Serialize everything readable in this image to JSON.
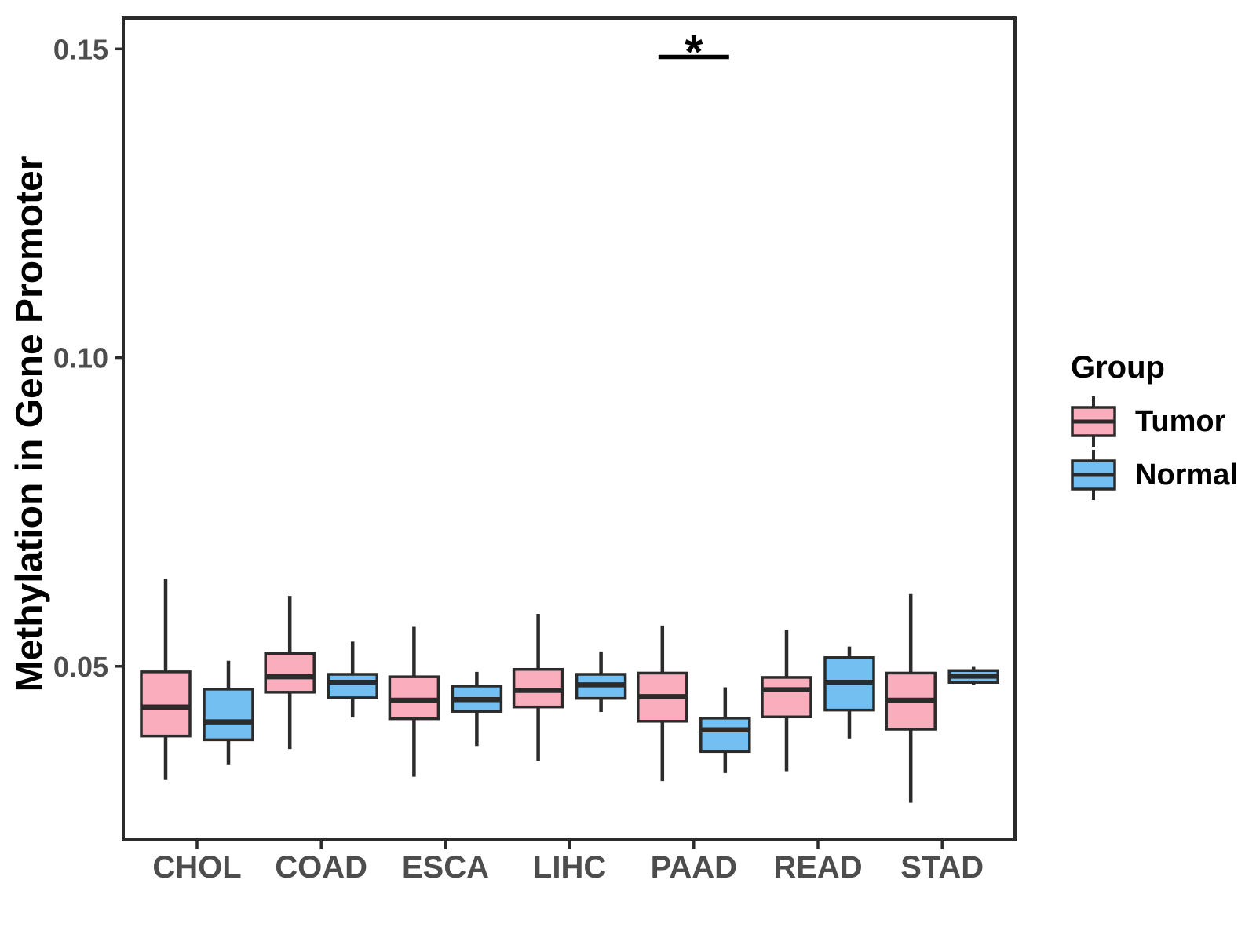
{
  "y_axis": {
    "title": "Methylation in Gene Promoter",
    "tick_labels": [
      "0.05",
      "0.10",
      "0.15"
    ]
  },
  "legend": {
    "title": "Group",
    "entries": [
      {
        "label": "Tumor",
        "color": "#FAAEBD"
      },
      {
        "label": "Normal",
        "color": "#74BFF2"
      }
    ]
  },
  "colors": {
    "box_stroke": "#2B2B2B",
    "axis_frame": "#2B2B2B",
    "tick_text": "#4D4D4D",
    "annotation": "#000000"
  },
  "chart_data": {
    "type": "boxplot",
    "title": "",
    "xlabel": "",
    "ylabel": "Methylation in Gene Promoter",
    "categories": [
      "CHOL",
      "COAD",
      "ESCA",
      "LIHC",
      "PAAD",
      "READ",
      "STAD"
    ],
    "ylim": [
      0.022,
      0.155
    ],
    "yticks": [
      0.05,
      0.1,
      0.15
    ],
    "ytick_labels": [
      "0.05",
      "0.10",
      "0.15"
    ],
    "grid": false,
    "legend_position": "right",
    "series": [
      {
        "name": "Tumor",
        "color": "#FAAEBD",
        "boxes": [
          {
            "category": "CHOL",
            "low": 0.0317,
            "q1": 0.0387,
            "median": 0.0434,
            "q3": 0.0491,
            "high": 0.0642
          },
          {
            "category": "COAD",
            "low": 0.0366,
            "q1": 0.0458,
            "median": 0.0483,
            "q3": 0.0521,
            "high": 0.0614
          },
          {
            "category": "ESCA",
            "low": 0.0321,
            "q1": 0.0415,
            "median": 0.0445,
            "q3": 0.0483,
            "high": 0.0564
          },
          {
            "category": "LIHC",
            "low": 0.0347,
            "q1": 0.0434,
            "median": 0.0461,
            "q3": 0.0495,
            "high": 0.0585
          },
          {
            "category": "PAAD",
            "low": 0.0314,
            "q1": 0.0411,
            "median": 0.0451,
            "q3": 0.0489,
            "high": 0.0566
          },
          {
            "category": "READ",
            "low": 0.033,
            "q1": 0.0418,
            "median": 0.0462,
            "q3": 0.0482,
            "high": 0.0559
          },
          {
            "category": "STAD",
            "low": 0.0279,
            "q1": 0.0398,
            "median": 0.0445,
            "q3": 0.0489,
            "high": 0.0617
          }
        ]
      },
      {
        "name": "Normal",
        "color": "#74BFF2",
        "boxes": [
          {
            "category": "CHOL",
            "low": 0.0341,
            "q1": 0.0381,
            "median": 0.041,
            "q3": 0.0463,
            "high": 0.0509
          },
          {
            "category": "COAD",
            "low": 0.0417,
            "q1": 0.0449,
            "median": 0.0474,
            "q3": 0.0487,
            "high": 0.054
          },
          {
            "category": "ESCA",
            "low": 0.0371,
            "q1": 0.0427,
            "median": 0.0446,
            "q3": 0.0468,
            "high": 0.0491
          },
          {
            "category": "LIHC",
            "low": 0.0426,
            "q1": 0.0448,
            "median": 0.047,
            "q3": 0.0487,
            "high": 0.0524
          },
          {
            "category": "PAAD",
            "low": 0.0327,
            "q1": 0.0362,
            "median": 0.0397,
            "q3": 0.0416,
            "high": 0.0466
          },
          {
            "category": "READ",
            "low": 0.0383,
            "q1": 0.0429,
            "median": 0.0474,
            "q3": 0.0514,
            "high": 0.0532
          },
          {
            "category": "STAD",
            "low": 0.047,
            "q1": 0.0474,
            "median": 0.0484,
            "q3": 0.0493,
            "high": 0.0499
          }
        ]
      }
    ],
    "annotations": [
      {
        "symbol": "*",
        "category": "PAAD",
        "bar_y": 0.1487,
        "symbol_y": 0.152
      }
    ]
  }
}
